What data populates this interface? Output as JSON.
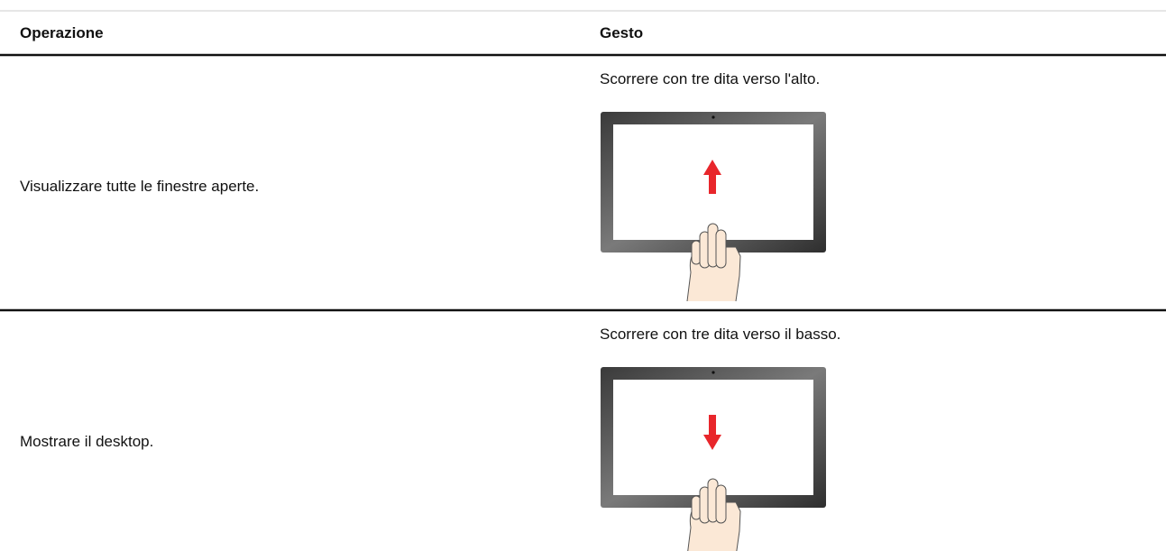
{
  "table": {
    "headers": [
      "Operazione",
      "Gesto"
    ],
    "rows": [
      [
        "Visualizzare tutte le finestre aperte.",
        "Scorrere con tre dita verso l'alto."
      ],
      [
        "Mostrare il desktop.",
        "Scorrere con tre dita verso il basso."
      ]
    ]
  }
}
